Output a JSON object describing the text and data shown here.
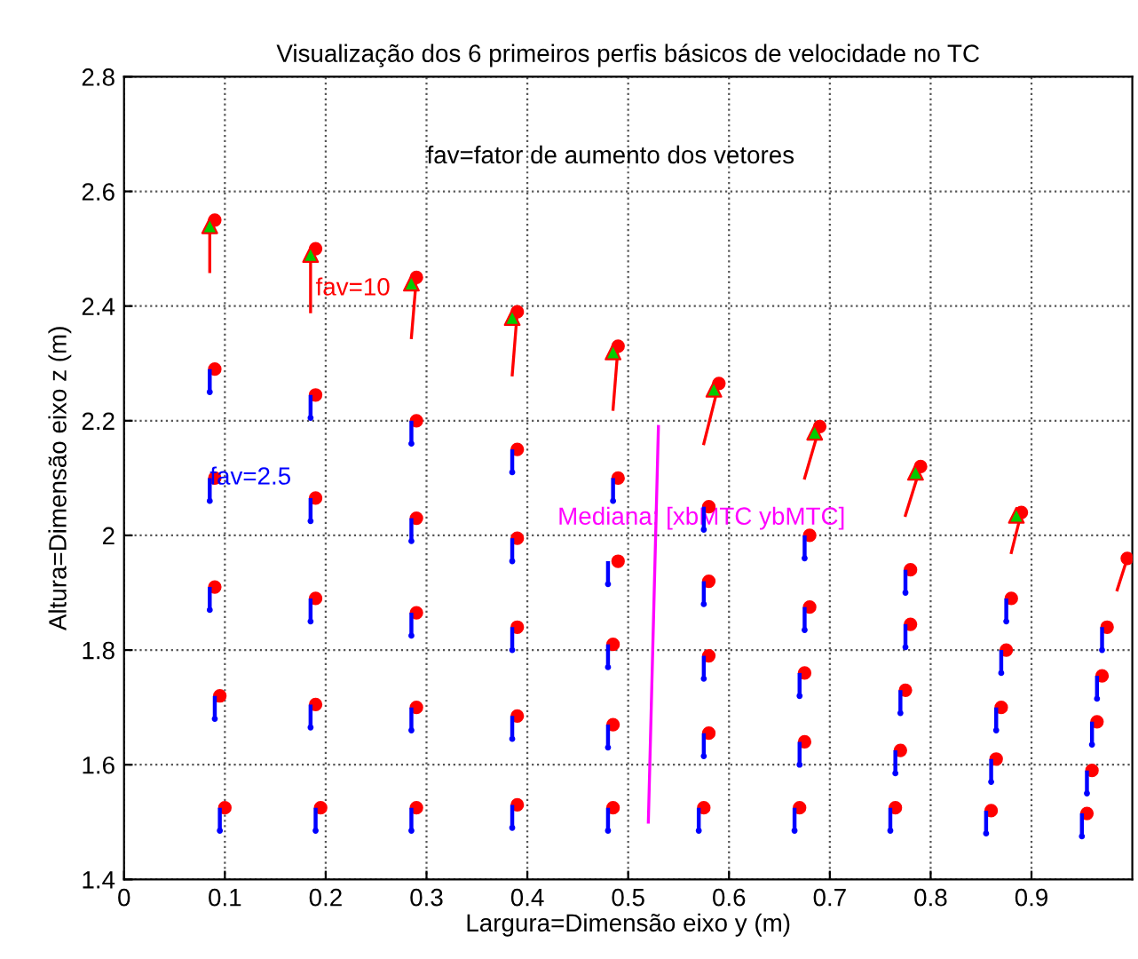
{
  "chart_data": {
    "type": "scatter",
    "title": "Visualização dos 6 primeiros perfis básicos de velocidade no TC",
    "xlabel": "Largura=Dimensão eixo y (m)",
    "ylabel": "Altura=Dimensão eixo z (m)",
    "xlim": [
      0,
      1
    ],
    "ylim": [
      1.4,
      2.8
    ],
    "xticks": [
      0,
      0.1,
      0.2,
      0.3,
      0.4,
      0.5,
      0.6,
      0.7,
      0.8,
      0.9
    ],
    "yticks": [
      1.4,
      1.6,
      1.8,
      2,
      2.2,
      2.4,
      2.6,
      2.8
    ],
    "grid": true,
    "series": [
      {
        "type": "line",
        "color": "#ff0000",
        "marker": "none",
        "line_style": "solid",
        "x": [
          0.085,
          0.085,
          null,
          0.185,
          0.185,
          null,
          0.285,
          0.29,
          null,
          0.385,
          0.39,
          null,
          0.485,
          0.49,
          null,
          0.575,
          0.59,
          null,
          0.675,
          0.69,
          null,
          0.775,
          0.79,
          null,
          0.88,
          0.89,
          null,
          0.985,
          0.995
        ],
        "values": [
          2.46,
          2.55,
          null,
          2.39,
          2.5,
          null,
          2.345,
          2.45,
          null,
          2.28,
          2.39,
          null,
          2.22,
          2.33,
          null,
          2.16,
          2.265,
          null,
          2.1,
          2.19,
          null,
          2.035,
          2.12,
          null,
          1.97,
          2.04,
          null,
          1.905,
          1.96
        ]
      },
      {
        "color": "#0000ff",
        "marker": "circle",
        "x": [
          0.085,
          0.085,
          0.085,
          0.09,
          0.095,
          0.185,
          0.185,
          0.185,
          0.185,
          0.19,
          0.285,
          0.285,
          0.285,
          0.285,
          0.285,
          0.385,
          0.385,
          0.385,
          0.385,
          0.385,
          0.485,
          0.48,
          0.48,
          0.48,
          0.48,
          0.575,
          0.575,
          0.575,
          0.575,
          0.57,
          0.675,
          0.675,
          0.67,
          0.67,
          0.665,
          0.775,
          0.775,
          0.77,
          0.765,
          0.76,
          0.875,
          0.87,
          0.865,
          0.86,
          0.855,
          0.97,
          0.965,
          0.96,
          0.955,
          0.95
        ],
        "values": [
          2.25,
          2.06,
          1.87,
          1.68,
          1.485,
          2.205,
          2.025,
          1.85,
          1.665,
          1.485,
          2.16,
          1.99,
          1.825,
          1.66,
          1.485,
          2.11,
          1.955,
          1.8,
          1.645,
          1.49,
          2.06,
          1.915,
          1.77,
          1.63,
          1.485,
          2.01,
          1.88,
          1.75,
          1.615,
          1.485,
          1.96,
          1.835,
          1.72,
          1.6,
          1.485,
          1.9,
          1.805,
          1.69,
          1.585,
          1.485,
          1.85,
          1.76,
          1.66,
          1.57,
          1.48,
          1.8,
          1.715,
          1.635,
          1.55,
          1.475
        ],
        "errors": [
          [
            2.25,
            2.29
          ],
          [
            2.06,
            2.1
          ],
          [
            1.87,
            1.91
          ],
          [
            1.68,
            1.72
          ],
          [
            1.485,
            1.525
          ],
          [
            2.205,
            2.245
          ],
          [
            2.025,
            2.065
          ],
          [
            1.85,
            1.89
          ],
          [
            1.665,
            1.705
          ],
          [
            1.485,
            1.525
          ],
          [
            2.16,
            2.2
          ],
          [
            1.99,
            2.03
          ],
          [
            1.825,
            1.865
          ],
          [
            1.66,
            1.7
          ],
          [
            1.485,
            1.525
          ],
          [
            2.11,
            2.15
          ],
          [
            1.955,
            1.995
          ],
          [
            1.8,
            1.84
          ],
          [
            1.645,
            1.685
          ],
          [
            1.49,
            1.53
          ],
          [
            2.06,
            2.1
          ],
          [
            1.915,
            1.955
          ],
          [
            1.77,
            1.81
          ],
          [
            1.63,
            1.67
          ],
          [
            1.485,
            1.525
          ],
          [
            2.01,
            2.05
          ],
          [
            1.88,
            1.92
          ],
          [
            1.75,
            1.79
          ],
          [
            1.615,
            1.655
          ],
          [
            1.485,
            1.525
          ],
          [
            1.96,
            2.0
          ],
          [
            1.835,
            1.875
          ],
          [
            1.72,
            1.76
          ],
          [
            1.6,
            1.64
          ],
          [
            1.485,
            1.525
          ],
          [
            1.9,
            1.94
          ],
          [
            1.805,
            1.845
          ],
          [
            1.69,
            1.73
          ],
          [
            1.585,
            1.625
          ],
          [
            1.485,
            1.525
          ],
          [
            1.85,
            1.89
          ],
          [
            1.76,
            1.8
          ],
          [
            1.66,
            1.7
          ],
          [
            1.57,
            1.61
          ],
          [
            1.48,
            1.52
          ],
          [
            1.8,
            1.84
          ],
          [
            1.715,
            1.755
          ],
          [
            1.635,
            1.675
          ],
          [
            1.55,
            1.59
          ],
          [
            1.475,
            1.515
          ]
        ]
      },
      {
        "color": "#ff0000",
        "marker": "circle",
        "x": [
          0.09,
          0.09,
          0.09,
          0.09,
          0.095,
          0.1,
          0.19,
          0.19,
          0.19,
          0.19,
          0.19,
          0.195,
          0.29,
          0.29,
          0.29,
          0.29,
          0.29,
          0.29,
          0.39,
          0.39,
          0.39,
          0.39,
          0.39,
          0.39,
          0.49,
          0.49,
          0.49,
          0.485,
          0.485,
          0.485,
          0.59,
          0.58,
          0.58,
          0.58,
          0.58,
          0.575,
          0.69,
          0.68,
          0.68,
          0.675,
          0.675,
          0.67,
          0.79,
          0.78,
          0.78,
          0.775,
          0.77,
          0.765,
          0.89,
          0.88,
          0.875,
          0.87,
          0.865,
          0.86,
          0.995,
          0.975,
          0.97,
          0.965,
          0.96,
          0.955
        ],
        "values": [
          2.55,
          2.29,
          2.1,
          1.91,
          1.72,
          1.525,
          2.5,
          2.245,
          2.065,
          1.89,
          1.705,
          1.525,
          2.45,
          2.2,
          2.03,
          1.865,
          1.7,
          1.525,
          2.39,
          2.15,
          1.995,
          1.84,
          1.685,
          1.53,
          2.33,
          2.1,
          1.955,
          1.81,
          1.67,
          1.525,
          2.265,
          2.05,
          1.92,
          1.79,
          1.655,
          1.525,
          2.19,
          2.0,
          1.875,
          1.76,
          1.64,
          1.525,
          2.12,
          1.94,
          1.845,
          1.73,
          1.625,
          1.525,
          2.04,
          1.89,
          1.8,
          1.7,
          1.61,
          1.52,
          1.96,
          1.84,
          1.755,
          1.675,
          1.59,
          1.515
        ]
      },
      {
        "color": "#00cc00",
        "marker": "triangle",
        "x": [
          0.085,
          0.185,
          0.285,
          0.385,
          0.485,
          0.585,
          0.685,
          0.785,
          0.885
        ],
        "values": [
          2.54,
          2.49,
          2.44,
          2.38,
          2.32,
          2.255,
          2.18,
          2.11,
          2.035
        ]
      },
      {
        "type": "line",
        "color": "#ff00ff",
        "marker": "none",
        "line_style": "solid",
        "x": [
          0.53,
          0.52
        ],
        "values": [
          2.19,
          1.5
        ]
      }
    ],
    "annotations": [
      "fav=fator de aumento dos vetores",
      {
        "text": "fav=10",
        "x": 0.19,
        "y": 2.43
      },
      {
        "text": "fav=2.5",
        "x": 0.085,
        "y": 2.1
      },
      "Mediana: [xbMTC ybMTC]"
    ]
  }
}
